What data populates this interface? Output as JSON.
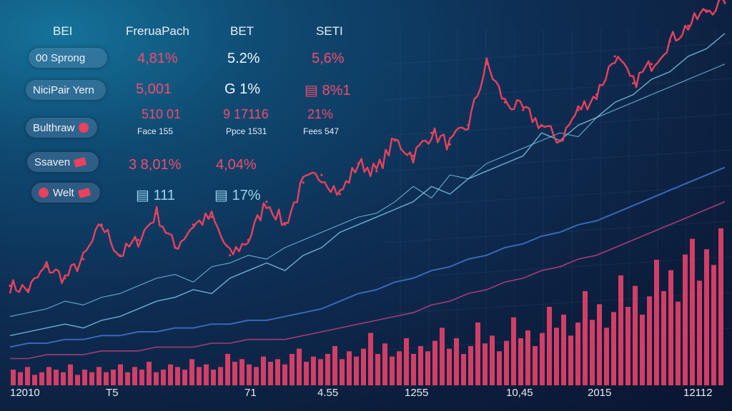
{
  "headers": [
    "BEI",
    "FreruaPach",
    "BET",
    "SETI"
  ],
  "rows": [
    {
      "label": "00 Sprong",
      "v1": "4,81%",
      "v2": "5.2%",
      "v3": "5,6%"
    },
    {
      "label": "NiciPair Yern",
      "v1": "5,001",
      "v2": "G 1%",
      "v3": "▤ 8%1"
    },
    {
      "label": "Bulthraw",
      "v1": "510 01",
      "v2": "9 17116",
      "v3": "21%",
      "s1": "Face 155",
      "s2": "Ppce 1531",
      "s3": "Fees 547"
    },
    {
      "label": "Ssaven",
      "v1": "3 8,01%",
      "v2": "4,04%"
    },
    {
      "label": "Welt",
      "v1": "▤ 111",
      "v2": "▤ 17%"
    }
  ],
  "colors": {
    "accent": "#e8425f",
    "bar": "#e8436a",
    "line": "#7fc7ea",
    "line_blue": "#3f6fc4",
    "line_purple": "#b23f7d",
    "text": "#eef2f8"
  },
  "chart_data": {
    "type": "line",
    "x_ticks": [
      "12010",
      "T5",
      "71",
      "4.55",
      "1255",
      "10,45",
      "2015",
      "12112"
    ],
    "ylim": [
      0,
      100
    ],
    "series": [
      {
        "values": [
          26,
          25,
          31,
          28,
          33,
          42,
          34,
          38,
          45,
          36,
          42,
          44,
          34,
          38,
          48,
          42,
          53,
          55,
          50,
          58,
          56,
          64,
          60,
          66,
          63,
          68,
          84,
          74,
          72,
          68,
          64,
          72,
          76,
          86,
          79,
          84,
          90,
          94,
          98,
          100
        ]
      },
      {
        "values": [
          13,
          14,
          15,
          16,
          15,
          17,
          18,
          20,
          22,
          23,
          25,
          24,
          28,
          30,
          32,
          30,
          34,
          36,
          40,
          42,
          44,
          46,
          48,
          52,
          50,
          54,
          56,
          58,
          60,
          66,
          64,
          68,
          70,
          74,
          76,
          80,
          82,
          86,
          88,
          92
        ]
      },
      {
        "values": [
          18,
          19,
          20,
          22,
          21,
          23,
          24,
          26,
          28,
          29,
          27,
          31,
          32,
          34,
          33,
          36,
          38,
          40,
          42,
          44,
          45,
          48,
          52,
          49,
          55,
          54,
          58,
          60,
          62,
          64,
          66,
          65,
          70,
          72,
          74,
          76,
          78,
          80,
          82,
          84
        ]
      },
      {
        "values": [
          10,
          11,
          11,
          12,
          12,
          13,
          13,
          14,
          14,
          15,
          15,
          16,
          16,
          17,
          17,
          18,
          19,
          20,
          22,
          24,
          25,
          27,
          28,
          30,
          31,
          33,
          34,
          36,
          37,
          39,
          40,
          42,
          43,
          45,
          47,
          49,
          51,
          53,
          55,
          57
        ]
      },
      {
        "values": [
          7,
          7,
          8,
          8,
          8,
          9,
          9,
          9,
          10,
          10,
          10,
          11,
          11,
          12,
          12,
          12,
          13,
          14,
          15,
          16,
          17,
          18,
          19,
          21,
          22,
          24,
          25,
          27,
          28,
          30,
          31,
          33,
          34,
          36,
          38,
          40,
          42,
          44,
          46,
          48
        ]
      }
    ],
    "bars": [
      6,
      5,
      7,
      4,
      5,
      7,
      6,
      5,
      8,
      4,
      6,
      5,
      7,
      5,
      6,
      8,
      5,
      7,
      6,
      9,
      5,
      6,
      8,
      7,
      6,
      10,
      7,
      8,
      6,
      7,
      12,
      9,
      10,
      8,
      7,
      11,
      9,
      10,
      8,
      12,
      14,
      9,
      11,
      10,
      12,
      15,
      10,
      13,
      11,
      14,
      20,
      12,
      16,
      11,
      13,
      18,
      12,
      15,
      13,
      17,
      22,
      14,
      18,
      12,
      15,
      24,
      16,
      19,
      13,
      17,
      26,
      18,
      21,
      15,
      20,
      30,
      22,
      27,
      19,
      24,
      36,
      25,
      31,
      22,
      28,
      42,
      30,
      38,
      27,
      34,
      48,
      36,
      44,
      32,
      50,
      56,
      40,
      52,
      46,
      60
    ]
  }
}
